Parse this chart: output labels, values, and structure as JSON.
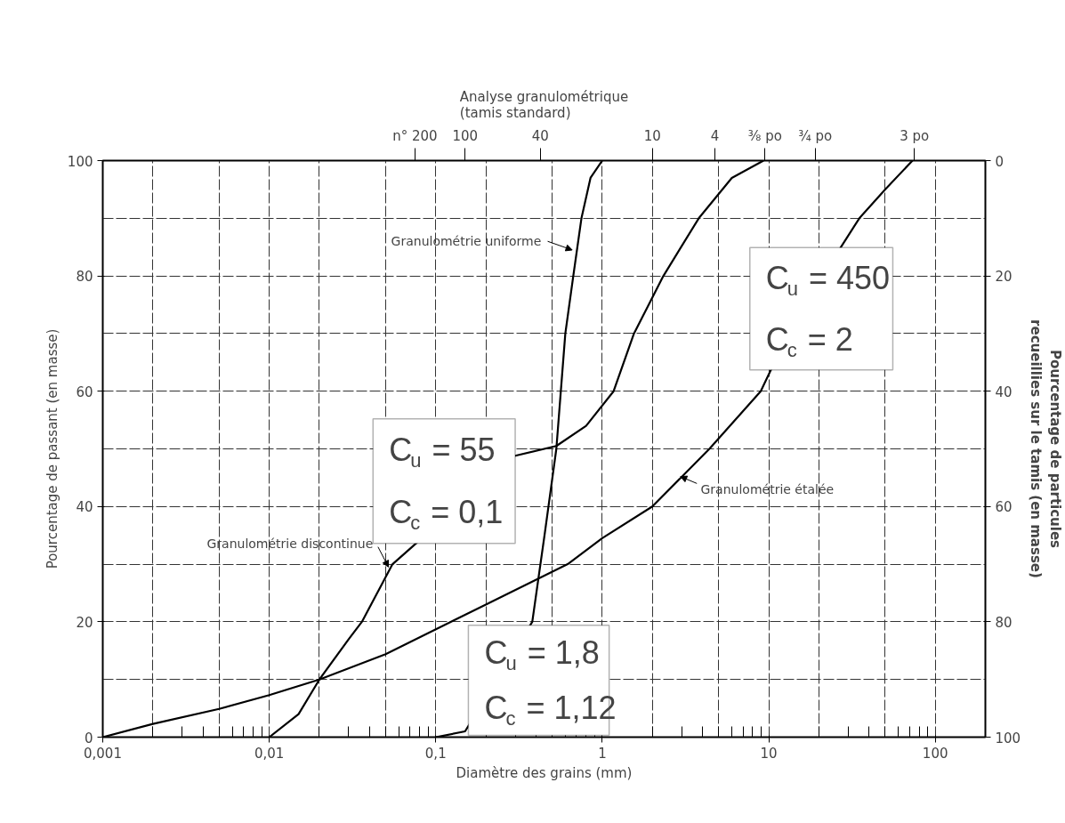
{
  "chart_data": {
    "type": "line",
    "xlabel": "Diamètre des grains (mm)",
    "ylabel": "Pourcentage de passant (en masse)",
    "y2label": "Pourcentage de particules\nrecueillies sur le tamis (en masse)",
    "title": "Analyse granulométrique\n(tamis standard)",
    "log": "x",
    "grid": true,
    "marker": "none",
    "line_style": "solid",
    "xlim": [
      0.001,
      200
    ],
    "xticks": [
      {
        "value": 0.001,
        "label": "0,001"
      },
      {
        "value": 0.01,
        "label": "0,01"
      },
      {
        "value": 0.1,
        "label": "0,1"
      },
      1,
      10,
      100
    ],
    "ylim": [
      0,
      100
    ],
    "yticks": [
      0,
      20,
      40,
      60,
      80,
      100
    ],
    "y2lim": [
      100,
      0
    ],
    "y2ticks": [
      0,
      20,
      40,
      60,
      80,
      100
    ],
    "series": [
      {
        "name": "Granulométrie uniforme",
        "color": "#000000",
        "x": [
          0.1,
          0.15,
          0.38,
          0.45,
          0.53,
          0.6,
          0.67,
          0.75,
          0.85,
          1.0
        ],
        "values": [
          0,
          1,
          20,
          35,
          50,
          70,
          80,
          90,
          97,
          100
        ]
      },
      {
        "name": "Granulométrie discontinue",
        "color": "#000000",
        "x": [
          0.01,
          0.015,
          0.02,
          0.03,
          0.036,
          0.055,
          0.3,
          0.53,
          0.8,
          1.17,
          1.55,
          2.33,
          3.8,
          6,
          9.3
        ],
        "values": [
          0,
          4,
          10,
          17,
          20,
          30,
          48.8,
          50.5,
          54,
          60,
          70,
          80,
          90,
          97,
          100
        ]
      },
      {
        "name": "Granulométrie étalée",
        "color": "#000000",
        "x": [
          0.001,
          0.002,
          0.005,
          0.01,
          0.02,
          0.05,
          0.123,
          0.2,
          0.62,
          1,
          2,
          4.4,
          8.95,
          10.3,
          27,
          35,
          50,
          73
        ],
        "values": [
          0,
          2.3,
          4.9,
          7.3,
          10,
          14.4,
          20,
          23,
          30,
          34.5,
          40,
          50,
          60,
          63.7,
          84.9,
          90,
          95,
          100
        ]
      }
    ],
    "annotations": [
      "C$_{u}$ = 450\nC$_{c}$ = 2",
      "C$_{u}$ = 55\nC$_{c}$ = 0,1",
      "C$_{u}$ = 1,8\nC$_{c}$ = 1,12",
      "n° 200",
      "100",
      "40",
      "10",
      "4",
      "⅜ po",
      "¾ po",
      "3 po"
    ]
  }
}
